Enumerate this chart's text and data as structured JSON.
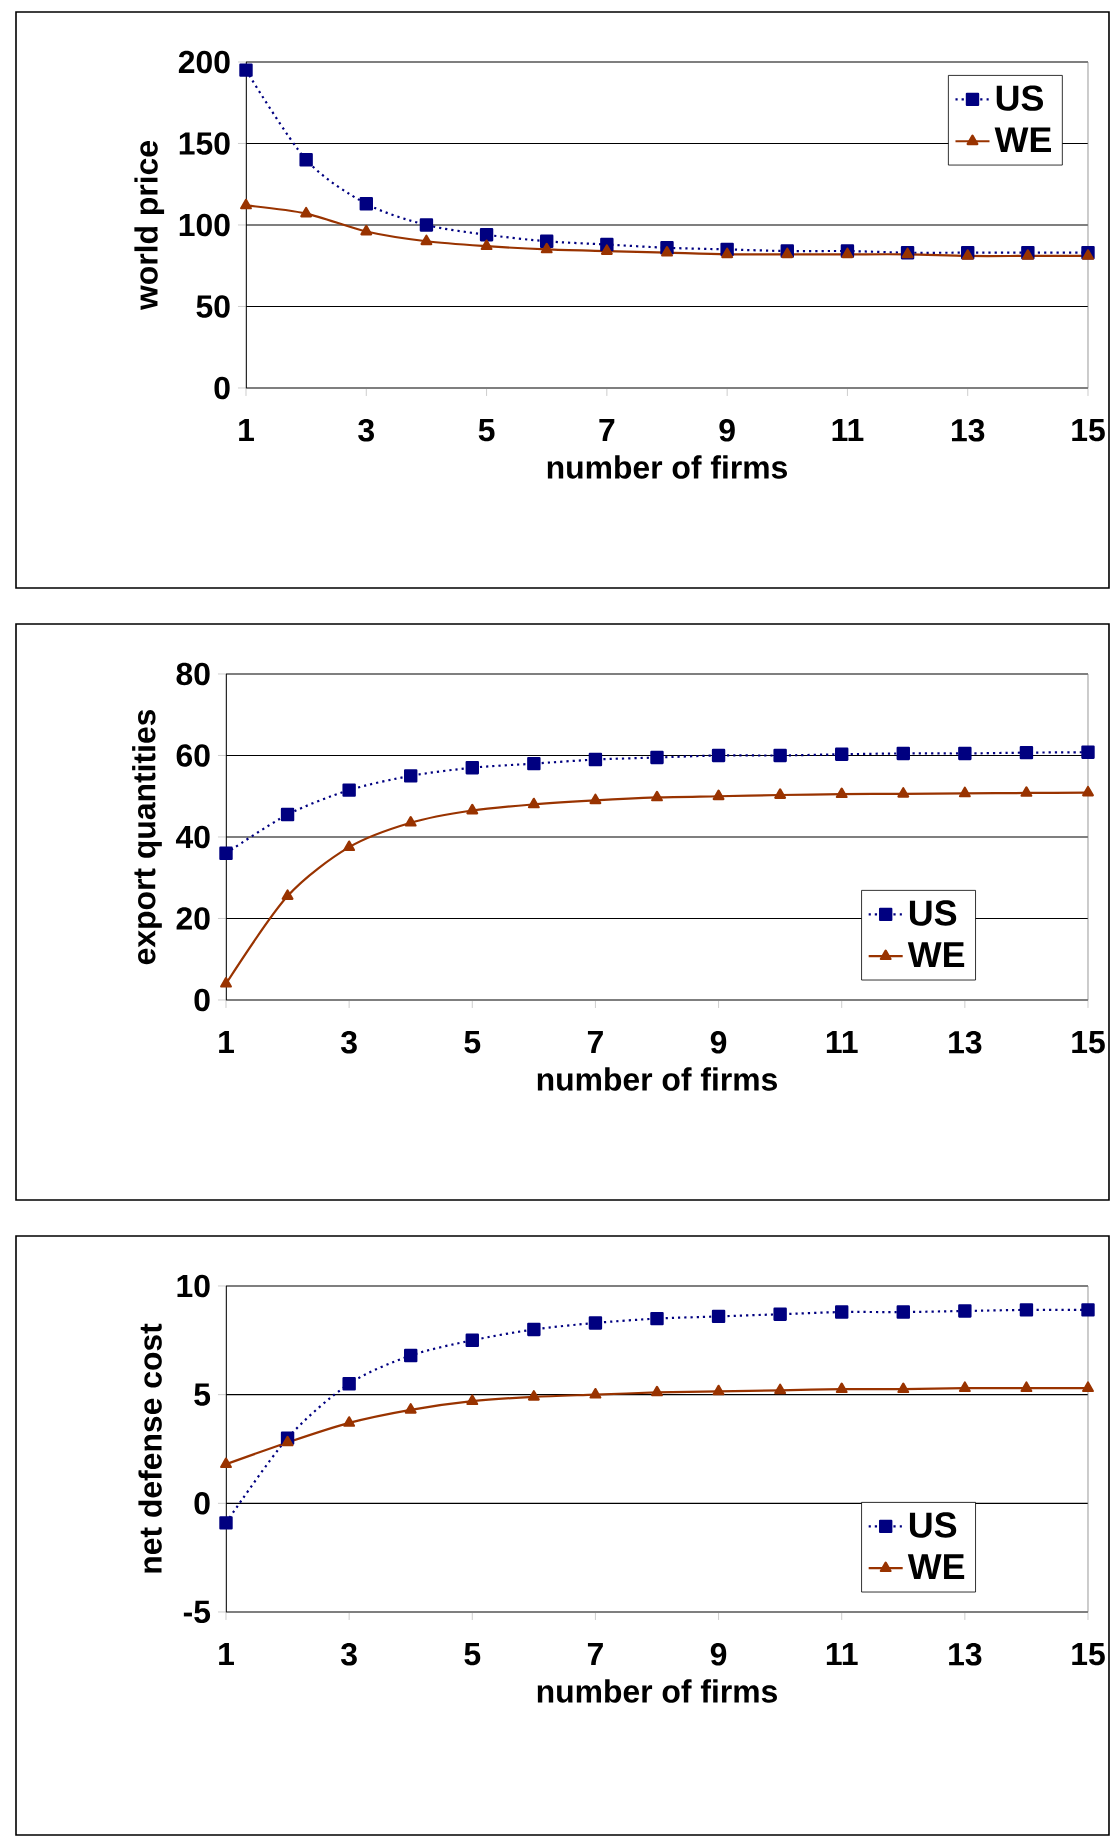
{
  "chart_data": [
    {
      "type": "line",
      "xlabel": "number of firms",
      "ylabel": "world price",
      "x": [
        1,
        2,
        3,
        4,
        5,
        6,
        7,
        8,
        9,
        10,
        11,
        12,
        13,
        14,
        15
      ],
      "xlim": [
        1,
        15
      ],
      "xticks": [
        1,
        3,
        5,
        7,
        9,
        11,
        13,
        15
      ],
      "ylim": [
        0,
        200
      ],
      "yticks": [
        0,
        50,
        100,
        150,
        200
      ],
      "grid": "y",
      "legend": "top right",
      "series": [
        {
          "name": "US",
          "color": "#000080",
          "marker": "square",
          "line_style": "dotted",
          "values": [
            195,
            140,
            113,
            100,
            94,
            90,
            88,
            86,
            85,
            84,
            84,
            83,
            83,
            83,
            83
          ]
        },
        {
          "name": "WE",
          "color": "#993300",
          "marker": "triangle",
          "line_style": "solid",
          "values": [
            112,
            107,
            96,
            90,
            87,
            85,
            84,
            83,
            82,
            82,
            82,
            82,
            81,
            81,
            81
          ]
        }
      ]
    },
    {
      "type": "line",
      "xlabel": "number of firms",
      "ylabel": "export quantities",
      "x": [
        1,
        2,
        3,
        4,
        5,
        6,
        7,
        8,
        9,
        10,
        11,
        12,
        13,
        14,
        15
      ],
      "xlim": [
        1,
        15
      ],
      "xticks": [
        1,
        3,
        5,
        7,
        9,
        11,
        13,
        15
      ],
      "ylim": [
        0,
        80
      ],
      "yticks": [
        0,
        20,
        40,
        60,
        80
      ],
      "grid": "y",
      "legend": "bottom right",
      "series": [
        {
          "name": "US",
          "color": "#000080",
          "marker": "square",
          "line_style": "dotted",
          "values": [
            36,
            45.5,
            51.5,
            55,
            57,
            58,
            59,
            59.5,
            60,
            60,
            60.3,
            60.5,
            60.5,
            60.7,
            60.8
          ]
        },
        {
          "name": "WE",
          "color": "#993300",
          "marker": "triangle",
          "line_style": "solid",
          "values": [
            4,
            25.5,
            37.5,
            43.5,
            46.5,
            48,
            49,
            49.7,
            50,
            50.3,
            50.5,
            50.6,
            50.7,
            50.8,
            50.9
          ]
        }
      ]
    },
    {
      "type": "line",
      "xlabel": "number of firms",
      "ylabel": "net defense cost",
      "x": [
        1,
        2,
        3,
        4,
        5,
        6,
        7,
        8,
        9,
        10,
        11,
        12,
        13,
        14,
        15
      ],
      "xlim": [
        1,
        15
      ],
      "xticks": [
        1,
        3,
        5,
        7,
        9,
        11,
        13,
        15
      ],
      "ylim": [
        -5,
        10
      ],
      "yticks": [
        -5,
        0,
        5,
        10
      ],
      "grid": "y",
      "legend": "bottom right",
      "series": [
        {
          "name": "US",
          "color": "#000080",
          "marker": "square",
          "line_style": "dotted",
          "values": [
            -0.9,
            3,
            5.5,
            6.8,
            7.5,
            8,
            8.3,
            8.5,
            8.6,
            8.7,
            8.8,
            8.8,
            8.85,
            8.9,
            8.9
          ]
        },
        {
          "name": "WE",
          "color": "#993300",
          "marker": "triangle",
          "line_style": "solid",
          "values": [
            1.8,
            2.8,
            3.7,
            4.3,
            4.7,
            4.9,
            5.0,
            5.1,
            5.15,
            5.2,
            5.25,
            5.25,
            5.3,
            5.3,
            5.3
          ]
        }
      ]
    }
  ]
}
